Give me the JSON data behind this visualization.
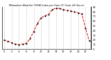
{
  "title": "Milwaukee Weather THSW Index per Hour (F) (Last 24 Hours)",
  "line_color": "#dd0000",
  "dot_color": "#000000",
  "bg_color": "#ffffff",
  "grid_color": "#888888",
  "ylim": [
    0,
    90
  ],
  "ytick_values": [
    0,
    10,
    20,
    30,
    40,
    50,
    60,
    70,
    80,
    90
  ],
  "hours": [
    0,
    1,
    2,
    3,
    4,
    5,
    6,
    7,
    8,
    9,
    10,
    11,
    12,
    13,
    14,
    15,
    16,
    17,
    18,
    19,
    20,
    21,
    22,
    23
  ],
  "values": [
    20,
    17,
    14,
    11,
    10,
    11,
    13,
    22,
    38,
    55,
    67,
    72,
    74,
    85,
    88,
    87,
    85,
    83,
    82,
    80,
    78,
    76,
    45,
    18
  ]
}
